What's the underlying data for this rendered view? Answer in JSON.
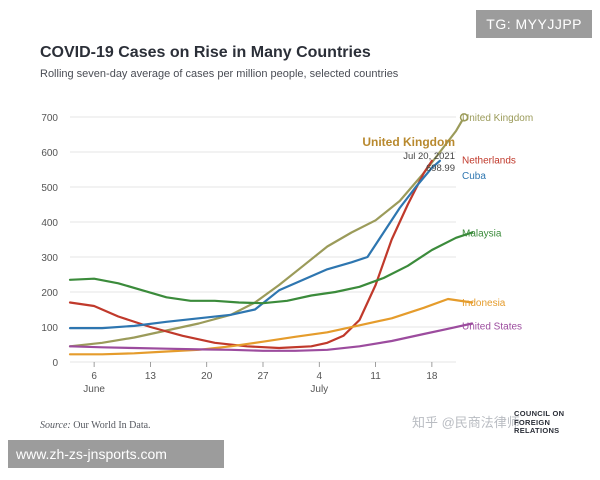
{
  "header": {
    "title": "COVID-19 Cases on Rise in Many Countries",
    "subtitle": "Rolling seven-day average of cases per million people, selected countries"
  },
  "footer": {
    "source_label": "Source:",
    "source_text": "Our World In Data.",
    "logo_lines": [
      "COUNCIL ON",
      "FOREIGN",
      "RELATIONS"
    ],
    "zh_watermark": "知乎 @民商法律师"
  },
  "watermarks": {
    "top_right": "TG: MYYJJPP",
    "bottom_left": "www.zh-zs-jnsports.com"
  },
  "chart_data": {
    "type": "line",
    "title": "COVID-19 Cases on Rise in Many Countries",
    "subtitle": "Rolling seven-day average of cases per million people, selected countries",
    "xlabel": "",
    "ylabel": "",
    "x_unit": "day index (0 = Jun 1, 2021)",
    "xlim": [
      2,
      50
    ],
    "ylim": [
      0,
      700
    ],
    "y_ticks": [
      0,
      100,
      200,
      300,
      400,
      500,
      600,
      700
    ],
    "x_ticks": [
      {
        "value": 5,
        "label": "6"
      },
      {
        "value": 12,
        "label": "13"
      },
      {
        "value": 19,
        "label": "20"
      },
      {
        "value": 26,
        "label": "27"
      },
      {
        "value": 33,
        "label": "4"
      },
      {
        "value": 40,
        "label": "11"
      },
      {
        "value": 47,
        "label": "18"
      }
    ],
    "month_labels": [
      {
        "value": 5,
        "label": "June"
      },
      {
        "value": 33,
        "label": "July"
      }
    ],
    "grid": true,
    "series": [
      {
        "name": "United Kingdom",
        "color": "#9b9b5a",
        "points": [
          [
            2,
            45
          ],
          [
            6,
            55
          ],
          [
            10,
            70
          ],
          [
            14,
            90
          ],
          [
            18,
            110
          ],
          [
            22,
            135
          ],
          [
            25,
            170
          ],
          [
            28,
            220
          ],
          [
            31,
            275
          ],
          [
            34,
            330
          ],
          [
            37,
            370
          ],
          [
            40,
            405
          ],
          [
            43,
            460
          ],
          [
            46,
            540
          ],
          [
            48,
            600
          ],
          [
            50,
            660
          ],
          [
            51,
            699
          ]
        ]
      },
      {
        "name": "Netherlands",
        "color": "#c0392b",
        "points": [
          [
            2,
            170
          ],
          [
            5,
            160
          ],
          [
            8,
            130
          ],
          [
            12,
            100
          ],
          [
            16,
            75
          ],
          [
            20,
            55
          ],
          [
            24,
            45
          ],
          [
            28,
            40
          ],
          [
            32,
            45
          ],
          [
            34,
            55
          ],
          [
            36,
            75
          ],
          [
            38,
            120
          ],
          [
            40,
            220
          ],
          [
            42,
            350
          ],
          [
            44,
            450
          ],
          [
            46,
            540
          ],
          [
            47,
            575
          ]
        ]
      },
      {
        "name": "Cuba",
        "color": "#2e76b0",
        "points": [
          [
            2,
            97
          ],
          [
            6,
            97
          ],
          [
            10,
            103
          ],
          [
            14,
            115
          ],
          [
            18,
            125
          ],
          [
            22,
            135
          ],
          [
            25,
            150
          ],
          [
            28,
            205
          ],
          [
            31,
            235
          ],
          [
            34,
            265
          ],
          [
            37,
            285
          ],
          [
            39,
            300
          ],
          [
            41,
            370
          ],
          [
            43,
            440
          ],
          [
            45,
            500
          ],
          [
            47,
            555
          ],
          [
            48,
            575
          ]
        ]
      },
      {
        "name": "Malaysia",
        "color": "#3b8b3b",
        "points": [
          [
            2,
            235
          ],
          [
            5,
            238
          ],
          [
            8,
            225
          ],
          [
            11,
            205
          ],
          [
            14,
            185
          ],
          [
            17,
            175
          ],
          [
            20,
            175
          ],
          [
            23,
            170
          ],
          [
            26,
            168
          ],
          [
            29,
            175
          ],
          [
            32,
            190
          ],
          [
            35,
            200
          ],
          [
            38,
            215
          ],
          [
            41,
            240
          ],
          [
            44,
            275
          ],
          [
            47,
            320
          ],
          [
            50,
            355
          ],
          [
            52,
            370
          ]
        ]
      },
      {
        "name": "Indonesia",
        "color": "#e59c2c",
        "points": [
          [
            2,
            22
          ],
          [
            6,
            22
          ],
          [
            10,
            25
          ],
          [
            14,
            30
          ],
          [
            18,
            35
          ],
          [
            22,
            45
          ],
          [
            26,
            58
          ],
          [
            30,
            72
          ],
          [
            34,
            85
          ],
          [
            38,
            105
          ],
          [
            42,
            125
          ],
          [
            46,
            155
          ],
          [
            49,
            180
          ],
          [
            52,
            170
          ]
        ]
      },
      {
        "name": "United States",
        "color": "#9c4c9e",
        "points": [
          [
            2,
            45
          ],
          [
            6,
            42
          ],
          [
            10,
            40
          ],
          [
            14,
            38
          ],
          [
            18,
            36
          ],
          [
            22,
            35
          ],
          [
            26,
            32
          ],
          [
            30,
            32
          ],
          [
            34,
            35
          ],
          [
            38,
            45
          ],
          [
            42,
            60
          ],
          [
            46,
            80
          ],
          [
            49,
            95
          ],
          [
            52,
            110
          ]
        ]
      }
    ],
    "legend": [
      {
        "label": "United Kingdom",
        "color": "#9b9b5a",
        "value": 700
      },
      {
        "label": "Netherlands",
        "color": "#c0392b",
        "value": 578
      },
      {
        "label": "Cuba",
        "color": "#2e76b0",
        "value": 535
      },
      {
        "label": "Malaysia",
        "color": "#3b8b3b",
        "value": 370
      },
      {
        "label": "Indonesia",
        "color": "#e59c2c",
        "value": 172
      },
      {
        "label": "United States",
        "color": "#9c4c9e",
        "value": 105
      }
    ],
    "annotation": {
      "label": "United Kingdom",
      "date": "Jul 20, 2021",
      "value": "698.99",
      "x": 51,
      "y": 699
    }
  }
}
